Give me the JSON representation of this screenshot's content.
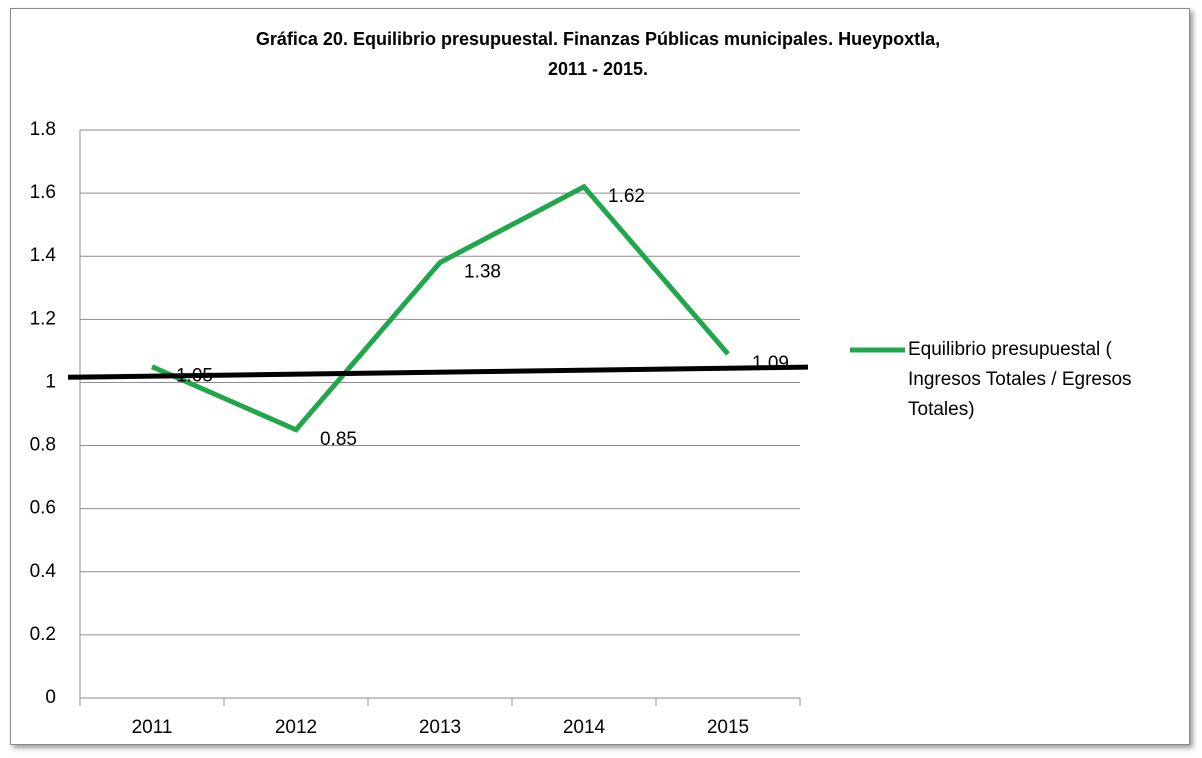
{
  "chart_data": {
    "type": "line",
    "title": "Gráfica 20. Equilibrio presupuestal. Finanzas Públicas municipales. Hueypoxtla, 2011 - 2015.",
    "categories": [
      "2011",
      "2012",
      "2013",
      "2014",
      "2015"
    ],
    "series": [
      {
        "name": "Equilibrio presupuestal ( Ingresos Totales / Egresos Totales)",
        "color": "#21a74b",
        "values": [
          1.05,
          0.85,
          1.38,
          1.62,
          1.09
        ]
      }
    ],
    "reference_line": {
      "color": "#000000",
      "values": [
        1.02,
        1.045
      ]
    },
    "ylim": [
      0,
      1.8
    ],
    "yticks": [
      0,
      0.2,
      0.4,
      0.6,
      0.8,
      1,
      1.2,
      1.4,
      1.6,
      1.8
    ],
    "grid": true,
    "legend": "right"
  }
}
